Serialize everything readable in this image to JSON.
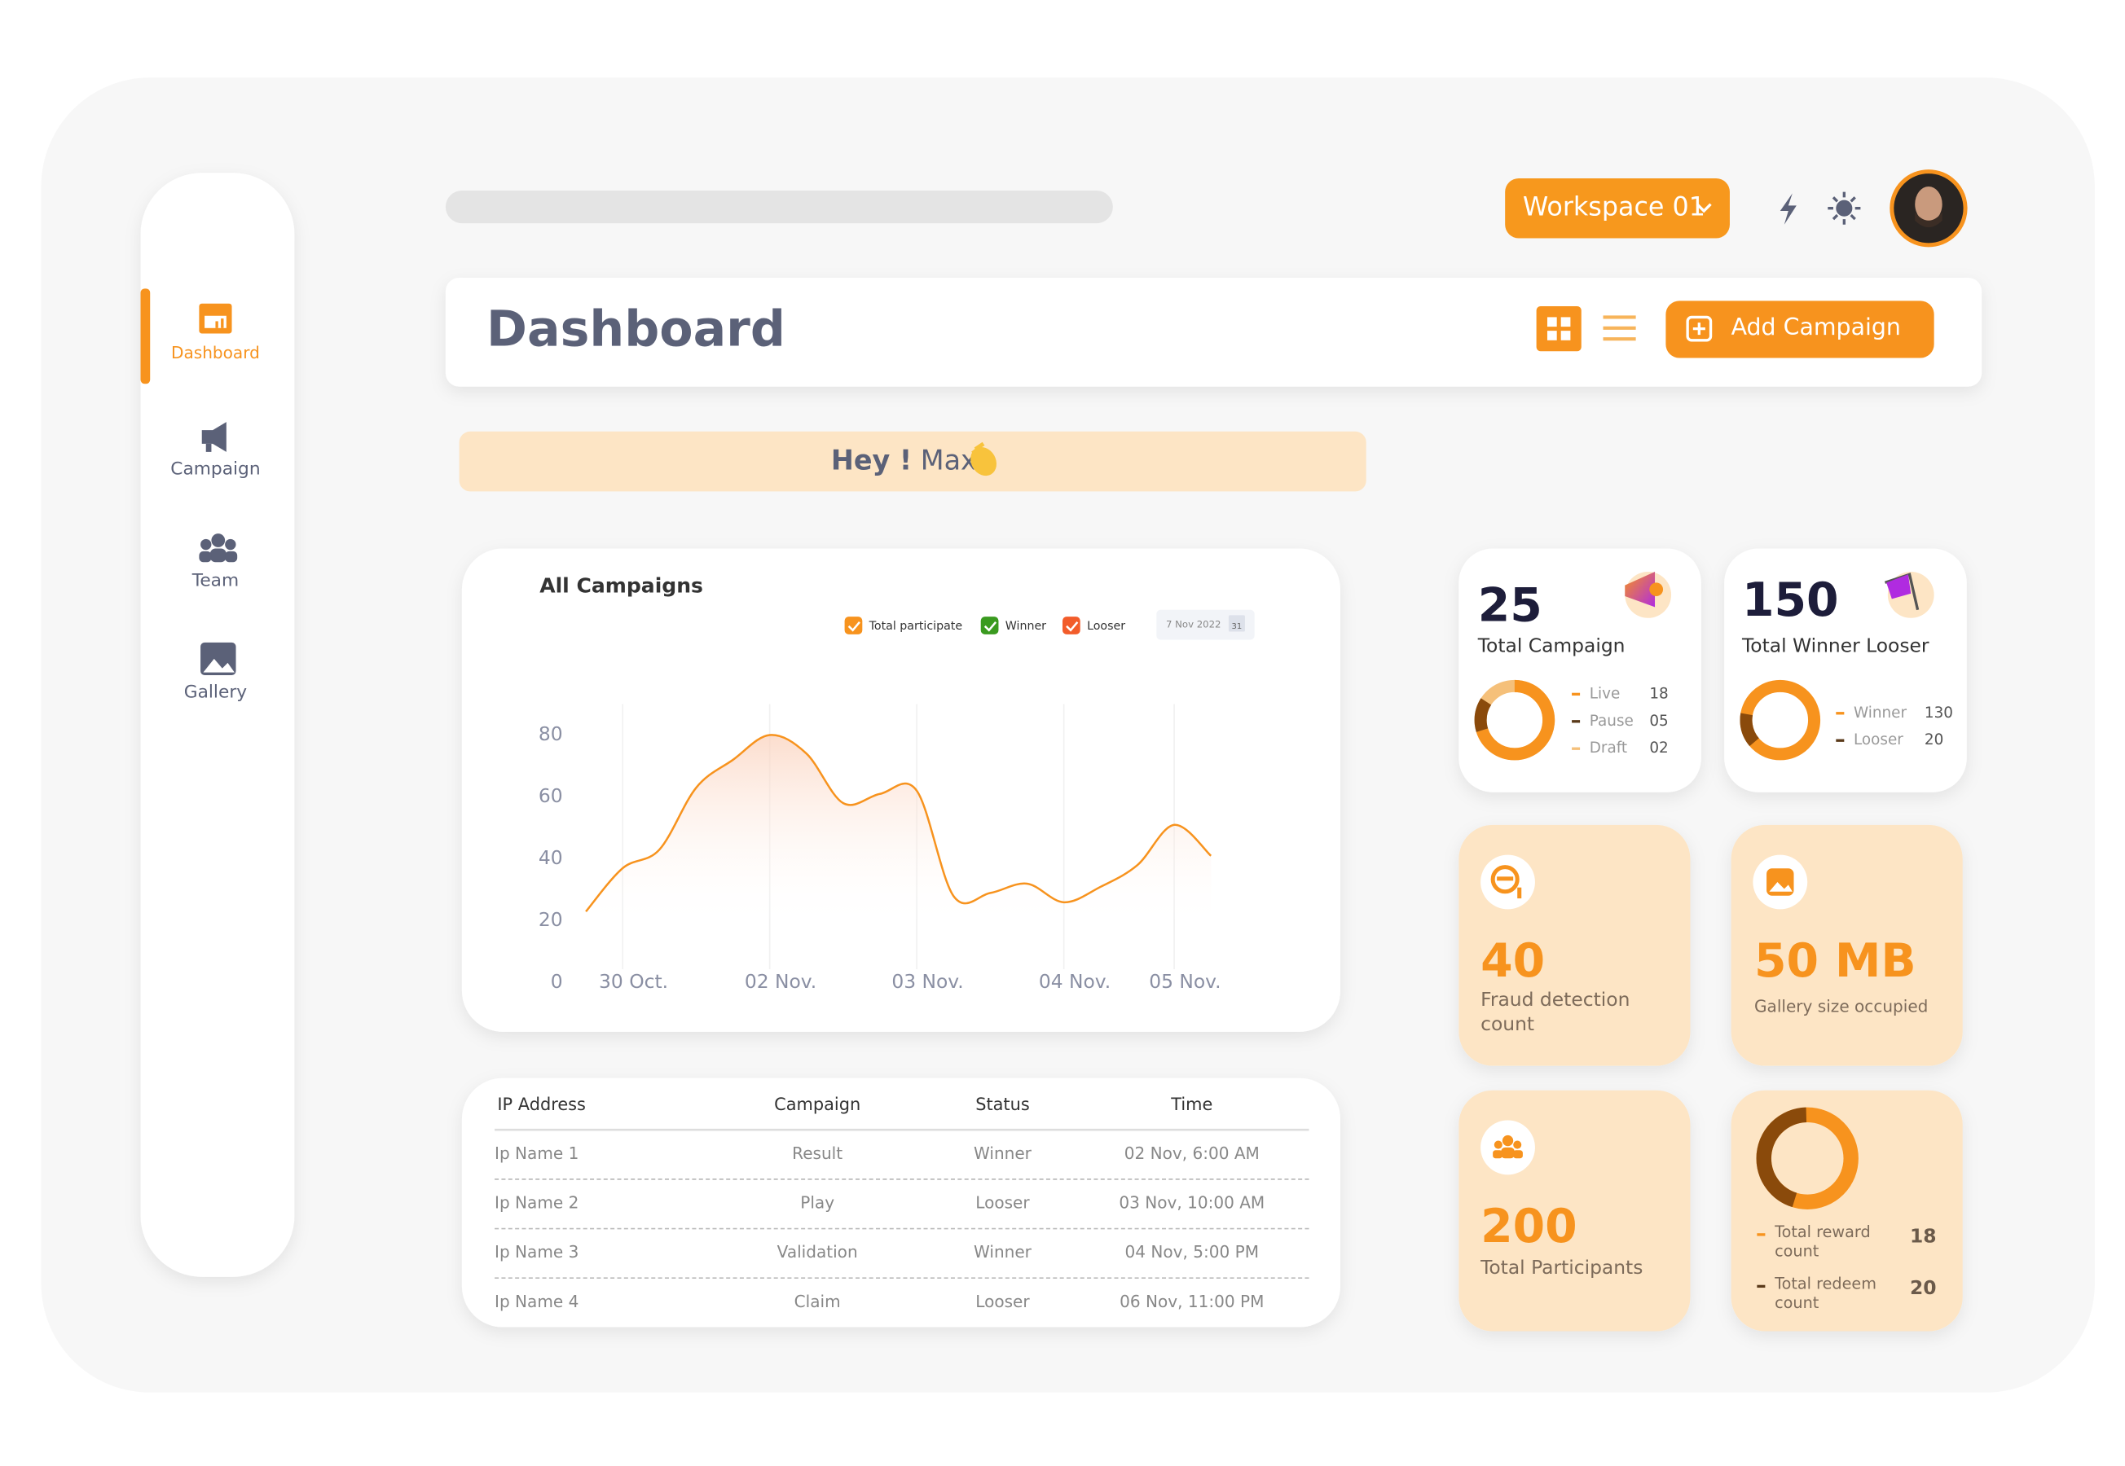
{
  "sidebar": {
    "nav": [
      "Dashboard",
      "Campaign",
      "Team",
      "Gallery"
    ]
  },
  "header": {
    "workspace": "Workspace 01",
    "title": "Dashboard",
    "add_button": "Add Campaign"
  },
  "greeting": {
    "hey": "Hey !",
    "name": "Max"
  },
  "chart_data": {
    "type": "line",
    "title": "All Campaigns",
    "date": "7 Nov 2022",
    "calendar_day": "31",
    "categories": [
      null,
      "30 Oct.",
      null,
      null,
      null,
      "02 Nov.",
      null,
      null,
      null,
      "03 Nov.",
      null,
      null,
      null,
      "04 Nov.",
      null,
      null,
      "05 Nov.",
      null
    ],
    "series": [
      {
        "name": "Total participate",
        "color": "#f7931e",
        "values": [
          23,
          37,
          43,
          63,
          72,
          80,
          74,
          58,
          61,
          62,
          28,
          29,
          32,
          26,
          31,
          38,
          51,
          41
        ]
      }
    ],
    "legend_items": [
      {
        "name": "Winner",
        "color": "#3a9a1f"
      },
      {
        "name": "Looser",
        "color": "#f25c2a"
      }
    ],
    "ylim": [
      0,
      90
    ],
    "yticks": [
      0,
      20,
      40,
      60,
      80
    ]
  },
  "stats": {
    "total_campaign": {
      "value": "25",
      "label": "Total Campaign",
      "items": [
        {
          "name": "Live",
          "value": "18"
        },
        {
          "name": "Pause",
          "value": "05"
        },
        {
          "name": "Draft",
          "value": "02"
        }
      ]
    },
    "total_winner_looser": {
      "value": "150",
      "label": "Total Winner Looser",
      "items": [
        {
          "name": "Winner",
          "value": "130"
        },
        {
          "name": "Looser",
          "value": "20"
        }
      ]
    },
    "fraud": {
      "value": "40",
      "label": "Fraud detection count"
    },
    "gallery": {
      "value": "50 MB",
      "label": "Gallery size occupied"
    },
    "participants": {
      "value": "200",
      "label": "Total Participants"
    },
    "rewards": {
      "items": [
        {
          "name": "Total reward count",
          "value": "18"
        },
        {
          "name": "Total redeem count",
          "value": "20"
        }
      ]
    }
  },
  "table": {
    "headers": [
      "IP Address",
      "Campaign",
      "Status",
      "Time"
    ],
    "rows": [
      [
        "Ip Name 1",
        "Result",
        "Winner",
        "02 Nov, 6:00 AM"
      ],
      [
        "Ip Name 2",
        "Play",
        "Looser",
        "03 Nov, 10:00 AM"
      ],
      [
        "Ip Name 3",
        "Validation",
        "Winner",
        "04 Nov, 5:00 PM"
      ],
      [
        "Ip Name 4",
        "Claim",
        "Looser",
        "06 Nov, 11:00 PM"
      ]
    ]
  }
}
